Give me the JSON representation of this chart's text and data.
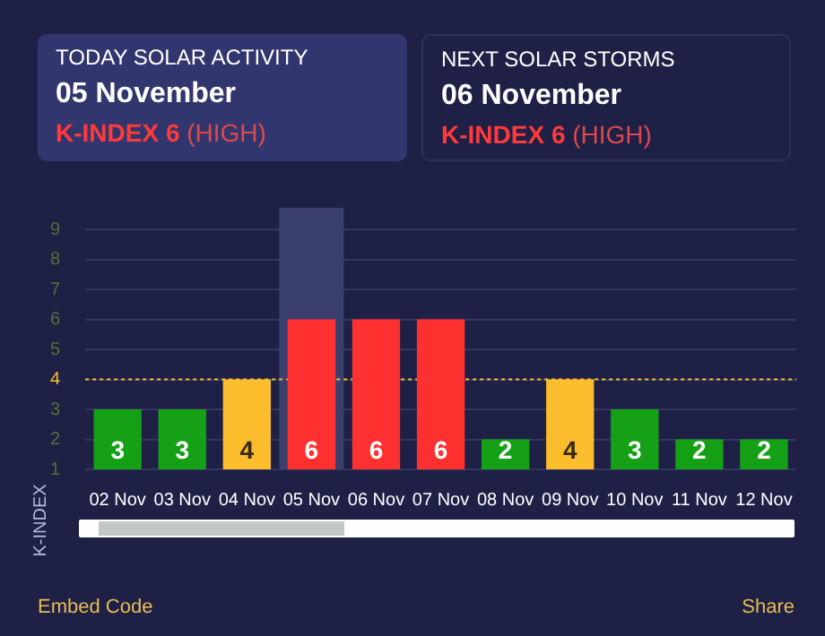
{
  "chart_data": {
    "type": "bar",
    "ylabel": "K-INDEX",
    "categories": [
      "02 Nov",
      "03 Nov",
      "04 Nov",
      "05 Nov",
      "06 Nov",
      "07 Nov",
      "08 Nov",
      "09 Nov",
      "10 Nov",
      "11 Nov",
      "12 Nov"
    ],
    "values": [
      3,
      3,
      4,
      6,
      6,
      6,
      2,
      4,
      3,
      2,
      2
    ],
    "colors": [
      "#15a015",
      "#15a015",
      "#fbbd2e",
      "#ff3030",
      "#ff3030",
      "#ff3030",
      "#15a015",
      "#fbbd2e",
      "#15a015",
      "#15a015",
      "#15a015"
    ],
    "ylim": [
      1,
      9
    ],
    "yticks": [
      1,
      2,
      3,
      4,
      5,
      6,
      7,
      8,
      9
    ],
    "grid": "y",
    "data_labels": true,
    "legend": false,
    "ref_lines": [
      {
        "axis": "y",
        "value": 4,
        "color": "#fbbd2e",
        "line_style": "dotted"
      }
    ],
    "bands": [
      {
        "axis": "x",
        "from": "05 Nov",
        "to": "05 Nov",
        "color": "#3a3f6e"
      }
    ],
    "annotations": [
      "TODAY SOLAR ACTIVITY",
      "05 November",
      "K-INDEX 6",
      "(HIGH)",
      "NEXT SOLAR STORMS",
      "06 November",
      "K-INDEX 6",
      "(HIGH)",
      "Embed Code",
      "Share"
    ]
  }
}
